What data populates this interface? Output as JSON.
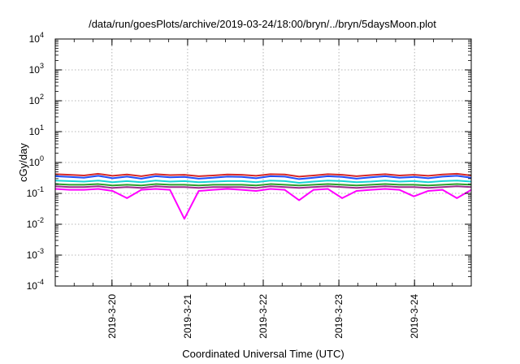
{
  "chart_data": {
    "type": "line",
    "title": "/data/run/goesPlots/archive/2019-03-24/18:00/bryn/../bryn/5daysMoon.plot",
    "xlabel": "Coordinated Universal Time (UTC)",
    "ylabel": "cGy/day",
    "yscale": "log",
    "ylim": [
      0.0001,
      10000
    ],
    "y_ticks": [
      {
        "base": "10",
        "exp": "-4",
        "value": 0.0001
      },
      {
        "base": "10",
        "exp": "-3",
        "value": 0.001
      },
      {
        "base": "10",
        "exp": "-2",
        "value": 0.01
      },
      {
        "base": "10",
        "exp": "-1",
        "value": 0.1
      },
      {
        "base": "10",
        "exp": "0",
        "value": 1
      },
      {
        "base": "10",
        "exp": "1",
        "value": 10
      },
      {
        "base": "10",
        "exp": "2",
        "value": 100
      },
      {
        "base": "10",
        "exp": "3",
        "value": 1000
      },
      {
        "base": "10",
        "exp": "4",
        "value": 10000
      }
    ],
    "xlim": [
      "2019-03-19 06:00",
      "2019-03-24 18:00"
    ],
    "x_ticks": [
      {
        "label": "2019-3-20",
        "value": "2019-03-20 00:00"
      },
      {
        "label": "2019-3-21",
        "value": "2019-03-21 00:00"
      },
      {
        "label": "2019-3-22",
        "value": "2019-03-22 00:00"
      },
      {
        "label": "2019-3-23",
        "value": "2019-03-23 00:00"
      },
      {
        "label": "2019-3-24",
        "value": "2019-03-24 00:00"
      }
    ],
    "grid": true,
    "x_interval_hours": 6,
    "series": [
      {
        "color": "#d62728",
        "values": [
          0.42,
          0.4,
          0.38,
          0.43,
          0.37,
          0.41,
          0.36,
          0.42,
          0.39,
          0.4,
          0.36,
          0.38,
          0.41,
          0.4,
          0.37,
          0.42,
          0.41,
          0.35,
          0.38,
          0.42,
          0.4,
          0.36,
          0.39,
          0.42,
          0.38,
          0.4,
          0.37,
          0.41,
          0.43,
          0.38
        ]
      },
      {
        "color": "#1f4fff",
        "values": [
          0.36,
          0.34,
          0.32,
          0.37,
          0.31,
          0.35,
          0.3,
          0.36,
          0.33,
          0.34,
          0.3,
          0.32,
          0.35,
          0.34,
          0.31,
          0.36,
          0.35,
          0.29,
          0.32,
          0.36,
          0.34,
          0.3,
          0.33,
          0.36,
          0.32,
          0.34,
          0.31,
          0.35,
          0.37,
          0.32
        ]
      },
      {
        "color": "#17d4d4",
        "values": [
          0.26,
          0.25,
          0.24,
          0.26,
          0.23,
          0.25,
          0.23,
          0.26,
          0.24,
          0.25,
          0.23,
          0.24,
          0.25,
          0.25,
          0.23,
          0.26,
          0.25,
          0.22,
          0.24,
          0.26,
          0.25,
          0.23,
          0.24,
          0.26,
          0.24,
          0.25,
          0.23,
          0.25,
          0.26,
          0.24
        ]
      },
      {
        "color": "#2ca02c",
        "values": [
          0.2,
          0.19,
          0.19,
          0.2,
          0.18,
          0.19,
          0.18,
          0.2,
          0.19,
          0.19,
          0.18,
          0.19,
          0.19,
          0.19,
          0.18,
          0.2,
          0.19,
          0.18,
          0.19,
          0.2,
          0.19,
          0.18,
          0.19,
          0.2,
          0.19,
          0.19,
          0.18,
          0.19,
          0.2,
          0.19
        ]
      },
      {
        "color": "#9b2f8f",
        "values": [
          0.17,
          0.16,
          0.16,
          0.17,
          0.15,
          0.16,
          0.15,
          0.17,
          0.16,
          0.16,
          0.15,
          0.16,
          0.16,
          0.16,
          0.15,
          0.17,
          0.16,
          0.15,
          0.16,
          0.17,
          0.16,
          0.15,
          0.16,
          0.17,
          0.16,
          0.16,
          0.15,
          0.16,
          0.17,
          0.16
        ]
      },
      {
        "color": "#ff00ff",
        "values": [
          0.14,
          0.13,
          0.13,
          0.14,
          0.12,
          0.07,
          0.13,
          0.14,
          0.13,
          0.015,
          0.12,
          0.13,
          0.14,
          0.13,
          0.12,
          0.14,
          0.13,
          0.06,
          0.13,
          0.14,
          0.07,
          0.12,
          0.13,
          0.14,
          0.13,
          0.08,
          0.12,
          0.13,
          0.07,
          0.13
        ]
      }
    ]
  }
}
